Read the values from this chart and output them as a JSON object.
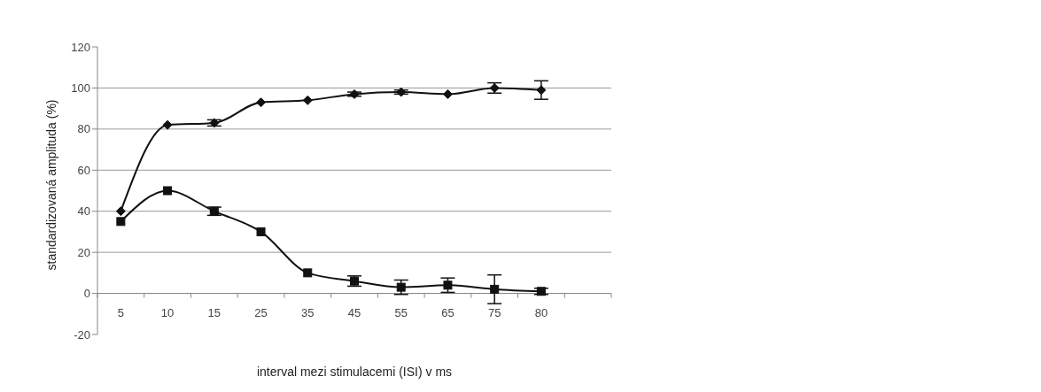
{
  "chart_data": {
    "type": "line",
    "xlabel": "interval mezi stimulacemi (ISI) v ms",
    "ylabel": "standardizovaná amplituda (%)",
    "categories": [
      "5",
      "10",
      "15",
      "25",
      "35",
      "45",
      "55",
      "65",
      "75",
      "80",
      null
    ],
    "series": [
      {
        "color": "#111111",
        "marker": "diamond",
        "values": [
          40,
          82,
          83,
          93,
          94,
          97,
          98,
          97,
          100,
          99,
          null
        ],
        "errors": [
          null,
          null,
          1.5,
          null,
          null,
          1,
          1,
          null,
          2.5,
          4.5,
          null
        ]
      },
      {
        "color": "#111111",
        "marker": "square",
        "values": [
          35,
          50,
          40,
          30,
          10,
          6,
          3,
          4,
          2,
          1,
          null
        ],
        "errors": [
          null,
          null,
          2,
          null,
          null,
          2.5,
          3.5,
          3.5,
          7,
          1.5,
          null
        ]
      }
    ],
    "ylim": [
      -20,
      120
    ],
    "yticks": [
      -20,
      0,
      20,
      40,
      60,
      80,
      100,
      120
    ],
    "grid": "y",
    "line_style": "solid"
  }
}
